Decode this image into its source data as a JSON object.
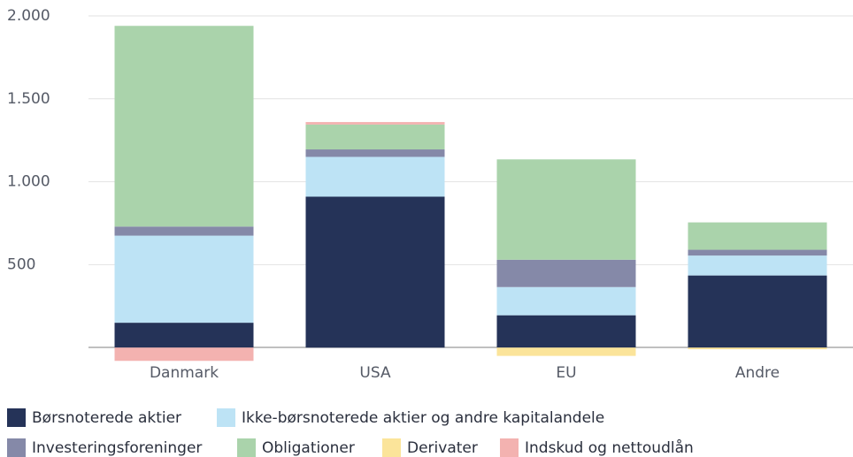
{
  "chart_data": {
    "type": "stacked_bar",
    "categories": [
      "Danmark",
      "USA",
      "EU",
      "Andre"
    ],
    "series": [
      {
        "name": "Børsnoterede aktier",
        "color": "#253358",
        "values": [
          150,
          910,
          195,
          435
        ]
      },
      {
        "name": "Ikke-børsnoterede aktier og andre kapitalandele",
        "color": "#bde3f5",
        "values": [
          525,
          240,
          170,
          120
        ]
      },
      {
        "name": "Investeringsforeninger",
        "color": "#8589a8",
        "values": [
          55,
          45,
          165,
          35
        ]
      },
      {
        "name": "Obligationer",
        "color": "#aad3ab",
        "values": [
          1210,
          150,
          605,
          165
        ]
      },
      {
        "name": "Derivater",
        "color": "#fbe49a",
        "values": [
          0,
          0,
          -50,
          -10
        ]
      },
      {
        "name": "Indskud og nettoudlån",
        "color": "#f3b2b0",
        "values": [
          -80,
          15,
          0,
          0
        ]
      }
    ],
    "ylim": [
      -100,
      2000
    ],
    "yticks": [
      {
        "value": 2000,
        "label": "2.000"
      },
      {
        "value": 1500,
        "label": "1.500"
      },
      {
        "value": 1000,
        "label": "1.000"
      },
      500
    ],
    "grid": true
  }
}
